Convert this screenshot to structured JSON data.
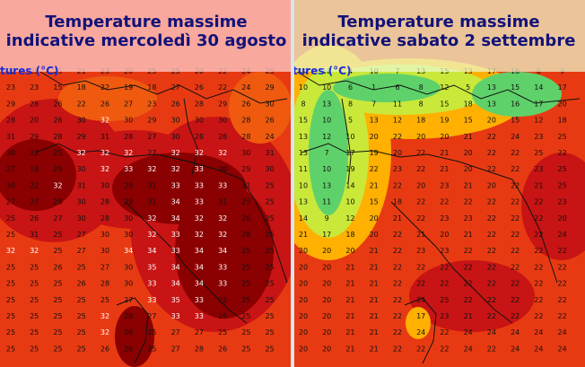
{
  "maps": [
    {
      "id": "left",
      "title_line1": "Temperature massime",
      "title_line2": "indicative mercoledì 30 agosto",
      "corner_label": "tures (°C)",
      "colors": {
        "hot": "#8b0000",
        "warm": "#c81414",
        "mid": "#e83a12",
        "mild": "#ef5a0f"
      },
      "grid_rows": [
        [
          "26",
          "25",
          "25",
          "21",
          "23",
          "20",
          "25",
          "25",
          "20",
          "22",
          "24",
          "25"
        ],
        [
          "23",
          "23",
          "15",
          "18",
          "22",
          "19",
          "18",
          "27",
          "26",
          "22",
          "24",
          "29"
        ],
        [
          "29",
          "28",
          "26",
          "22",
          "26",
          "27",
          "23",
          "26",
          "28",
          "29",
          "26",
          "30"
        ],
        [
          "28",
          "20",
          "26",
          "30",
          "32",
          "30",
          "29",
          "30",
          "30",
          "30",
          "28",
          "26"
        ],
        [
          "31",
          "29",
          "28",
          "29",
          "31",
          "28",
          "27",
          "30",
          "28",
          "28",
          "28",
          "24"
        ],
        [
          "30",
          "22",
          "25",
          "32",
          "32",
          "32",
          "27",
          "32",
          "32",
          "32",
          "30",
          "31"
        ],
        [
          "27",
          "18",
          "29",
          "30",
          "32",
          "33",
          "32",
          "32",
          "33",
          "30",
          "29",
          "30"
        ],
        [
          "30",
          "22",
          "32",
          "31",
          "30",
          "29",
          "31",
          "33",
          "33",
          "33",
          "31",
          "25"
        ],
        [
          "27",
          "27",
          "28",
          "30",
          "28",
          "29",
          "31",
          "34",
          "33",
          "31",
          "25",
          "25"
        ],
        [
          "25",
          "26",
          "27",
          "30",
          "28",
          "30",
          "32",
          "34",
          "32",
          "32",
          "26",
          "25"
        ],
        [
          "25",
          "31",
          "25",
          "27",
          "30",
          "30",
          "32",
          "33",
          "32",
          "32",
          "28",
          "25"
        ],
        [
          "32",
          "32",
          "25",
          "27",
          "30",
          "34",
          "34",
          "33",
          "34",
          "34",
          "25",
          "25"
        ],
        [
          "25",
          "25",
          "26",
          "25",
          "27",
          "30",
          "35",
          "34",
          "34",
          "33",
          "25",
          "25"
        ],
        [
          "25",
          "25",
          "25",
          "26",
          "28",
          "30",
          "33",
          "34",
          "34",
          "33",
          "25",
          "25"
        ],
        [
          "25",
          "25",
          "25",
          "25",
          "25",
          "27",
          "33",
          "35",
          "33",
          "25",
          "25",
          "25"
        ],
        [
          "25",
          "25",
          "25",
          "25",
          "32",
          "28",
          "27",
          "33",
          "33",
          "25",
          "25",
          "25"
        ],
        [
          "25",
          "25",
          "25",
          "25",
          "32",
          "26",
          "25",
          "27",
          "27",
          "25",
          "25",
          "25"
        ],
        [
          "25",
          "25",
          "25",
          "25",
          "26",
          "26",
          "25",
          "27",
          "28",
          "26",
          "25",
          "25"
        ]
      ]
    },
    {
      "id": "right",
      "title_line1": "Temperature massime",
      "title_line2": "indicative sabato 2 settembre",
      "corner_label": "tures (°C)",
      "colors": {
        "hot": "#c81414",
        "warm": "#e83a12",
        "mid": "#ffb000",
        "mild": "#c9e83a"
      },
      "grid_rows": [
        [
          "14",
          "10",
          "4",
          "10",
          "7",
          "13",
          "15",
          "13",
          "17",
          "16",
          "6",
          "9"
        ],
        [
          "10",
          "10",
          "6",
          "1",
          "6",
          "8",
          "12",
          "5",
          "13",
          "15",
          "14",
          "17"
        ],
        [
          "8",
          "13",
          "8",
          "7",
          "11",
          "8",
          "15",
          "18",
          "13",
          "16",
          "17",
          "20"
        ],
        [
          "15",
          "10",
          "5",
          "13",
          "12",
          "18",
          "19",
          "15",
          "20",
          "15",
          "12",
          "18"
        ],
        [
          "13",
          "12",
          "10",
          "20",
          "22",
          "20",
          "20",
          "21",
          "22",
          "24",
          "23",
          "25"
        ],
        [
          "13",
          "7",
          "17",
          "19",
          "20",
          "22",
          "21",
          "20",
          "22",
          "22",
          "25",
          "22"
        ],
        [
          "11",
          "10",
          "19",
          "22",
          "23",
          "22",
          "21",
          "20",
          "22",
          "22",
          "23",
          "25"
        ],
        [
          "10",
          "13",
          "14",
          "21",
          "22",
          "20",
          "23",
          "21",
          "20",
          "22",
          "21",
          "25"
        ],
        [
          "13",
          "11",
          "10",
          "15",
          "18",
          "22",
          "22",
          "22",
          "22",
          "22",
          "22",
          "23"
        ],
        [
          "14",
          "9",
          "12",
          "20",
          "21",
          "22",
          "23",
          "23",
          "22",
          "22",
          "22",
          "20"
        ],
        [
          "21",
          "17",
          "18",
          "20",
          "22",
          "21",
          "20",
          "21",
          "22",
          "22",
          "22",
          "24"
        ],
        [
          "20",
          "20",
          "20",
          "21",
          "22",
          "23",
          "23",
          "22",
          "22",
          "22",
          "22",
          "22"
        ],
        [
          "20",
          "20",
          "21",
          "21",
          "22",
          "22",
          "22",
          "22",
          "22",
          "22",
          "22",
          "22"
        ],
        [
          "20",
          "20",
          "21",
          "21",
          "22",
          "22",
          "22",
          "22",
          "22",
          "22",
          "22",
          "22"
        ],
        [
          "20",
          "20",
          "21",
          "21",
          "22",
          "24",
          "25",
          "22",
          "22",
          "22",
          "22",
          "22"
        ],
        [
          "20",
          "20",
          "21",
          "21",
          "22",
          "17",
          "23",
          "21",
          "22",
          "22",
          "22",
          "22"
        ],
        [
          "20",
          "20",
          "21",
          "21",
          "22",
          "24",
          "22",
          "24",
          "24",
          "24",
          "24",
          "24"
        ],
        [
          "20",
          "20",
          "21",
          "21",
          "22",
          "22",
          "22",
          "24",
          "22",
          "24",
          "24",
          "24"
        ]
      ]
    }
  ]
}
